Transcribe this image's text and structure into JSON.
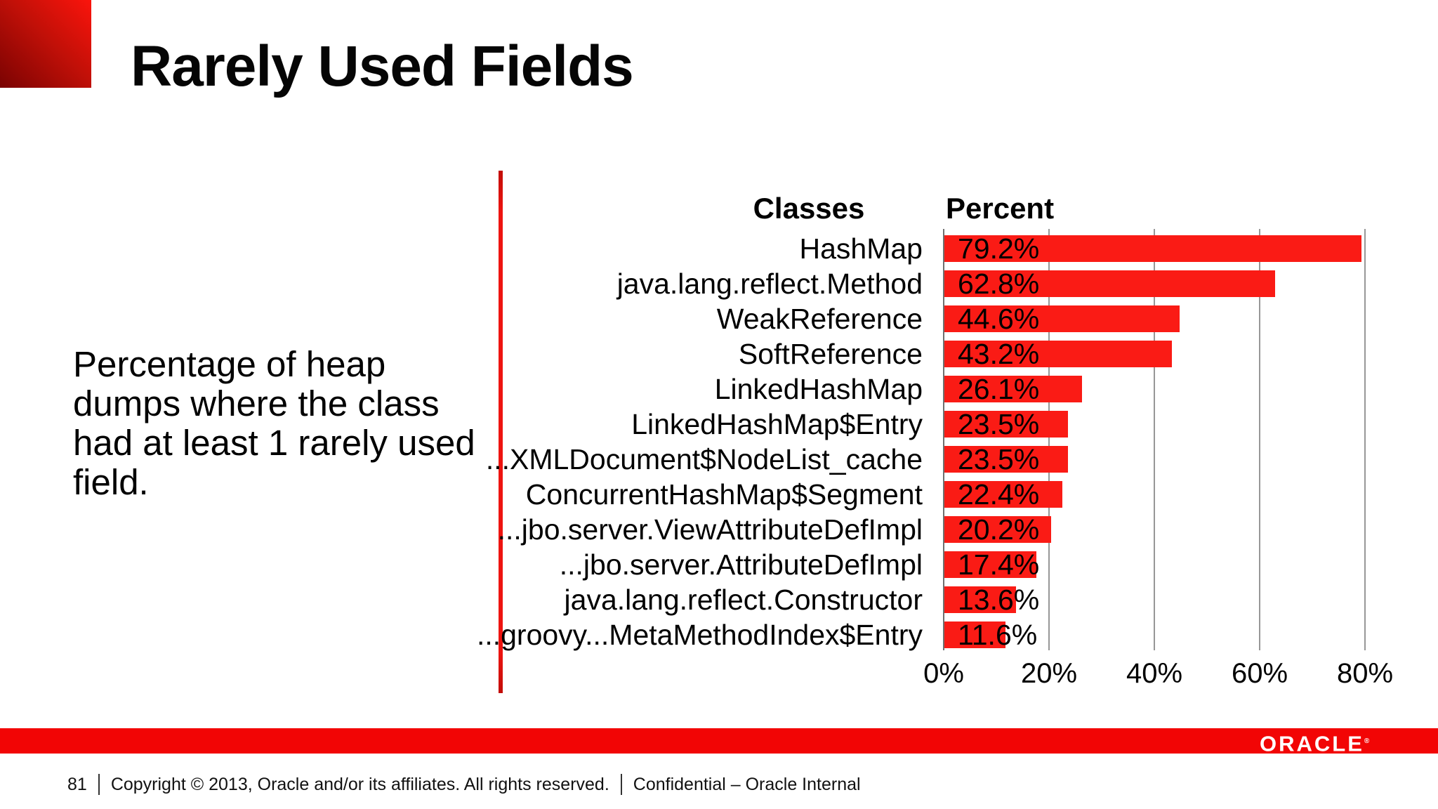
{
  "slide": {
    "title": "Rarely Used Fields",
    "description_lines": [
      "Percentage of heap",
      "dumps where the class",
      "had at least 1 rarely used",
      "field."
    ],
    "page_number": "81",
    "copyright": "Copyright © 2013, Oracle and/or its affiliates. All rights reserved.",
    "confidential": "Confidential – Oracle Internal",
    "brand": "ORACLE",
    "brand_registered_mark": "®"
  },
  "chart_data": {
    "type": "bar",
    "orientation": "horizontal",
    "col_headers": {
      "classes": "Classes",
      "percent": "Percent"
    },
    "categories": [
      "HashMap",
      "java.lang.reflect.Method",
      "WeakReference",
      "SoftReference",
      "LinkedHashMap",
      "LinkedHashMap$Entry",
      "...XMLDocument$NodeList_cache",
      "ConcurrentHashMap$Segment",
      "...jbo.server.ViewAttributeDefImpl",
      "...jbo.server.AttributeDefImpl",
      "java.lang.reflect.Constructor",
      "...groovy...MetaMethodIndex$Entry"
    ],
    "values": [
      79.2,
      62.8,
      44.6,
      43.2,
      26.1,
      23.5,
      23.5,
      22.4,
      20.2,
      17.4,
      13.6,
      11.6
    ],
    "value_labels": [
      "79.2%",
      "62.8%",
      "44.6%",
      "43.2%",
      "26.1%",
      "23.5%",
      "23.5%",
      "22.4%",
      "20.2%",
      "17.4%",
      "13.6%",
      "11.6%"
    ],
    "x_ticks": [
      "0%",
      "20%",
      "40%",
      "60%",
      "80%"
    ],
    "x_tick_values": [
      0,
      20,
      40,
      60,
      80
    ],
    "xlim": [
      0,
      89
    ],
    "grid": true,
    "legend": false,
    "bar_color": "#fa1b15"
  },
  "colors": {
    "bar_red": "#fa1b15",
    "footer_red": "#f20505",
    "divider_red": "#ee1410",
    "corner_gradient_bright": "#fb140c",
    "corner_gradient_dark": "#7a0302",
    "gridline_gray": "#979797",
    "axis_gray": "#6f6f6f",
    "text_black": "#000000",
    "logo_white": "#ffffff"
  }
}
